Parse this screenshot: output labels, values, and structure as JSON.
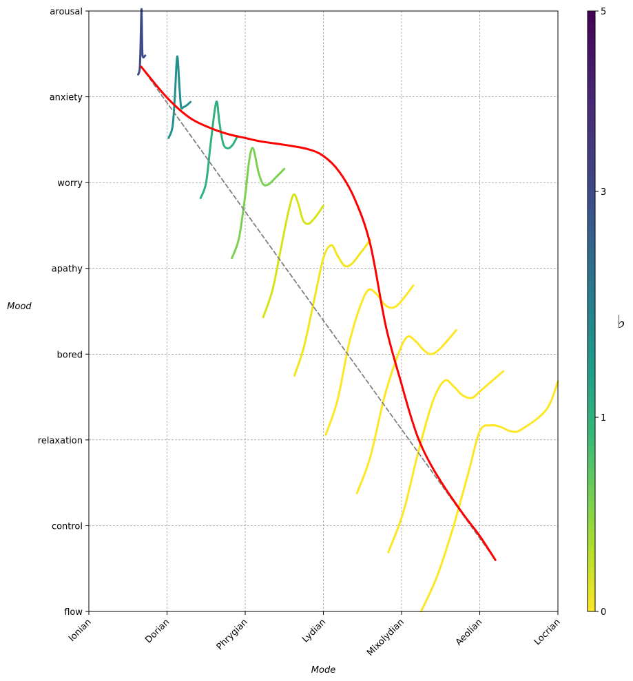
{
  "chart_data": {
    "type": "line",
    "xlabel": "Mode",
    "ylabel": "Mood",
    "x_ticks": [
      "Ionian",
      "Dorian",
      "Phrygian",
      "Lydian",
      "Mixolydian",
      "Aeolian",
      "Locrian"
    ],
    "y_ticks": [
      "flow",
      "control",
      "relaxation",
      "bored",
      "apathy",
      "worry",
      "anxiety",
      "arousal"
    ],
    "xlim": [
      0,
      6
    ],
    "ylim": [
      0,
      7
    ],
    "grid": true,
    "colorbar": {
      "label": "♭",
      "ticks": [
        "0",
        "1",
        "3",
        "5"
      ],
      "range": [
        0,
        5
      ],
      "colormap": "viridis_r"
    },
    "series": [
      {
        "kind": "main-curve",
        "color": "#ff0000",
        "x": [
          0.67,
          1.0,
          1.3,
          1.6,
          1.8,
          2.0,
          2.2,
          2.5,
          2.8,
          3.0,
          3.2,
          3.4,
          3.6,
          3.8,
          4.0,
          4.1,
          4.2,
          4.3,
          4.4,
          4.5,
          4.6,
          4.8,
          5.0,
          5.2
        ],
        "y": [
          6.35,
          5.99,
          5.75,
          5.62,
          5.56,
          5.52,
          5.48,
          5.44,
          5.39,
          5.31,
          5.13,
          4.81,
          4.28,
          3.32,
          2.65,
          2.33,
          2.05,
          1.84,
          1.67,
          1.52,
          1.38,
          1.12,
          0.88,
          0.6
        ]
      },
      {
        "kind": "dashed-reference",
        "color": "#808080",
        "x": [
          0.67,
          5.2
        ],
        "y": [
          6.35,
          0.6
        ]
      },
      {
        "kind": "wave",
        "color": "#3e4b89",
        "x": [
          0.63,
          0.65,
          0.66,
          0.67,
          0.675,
          0.68,
          0.685,
          0.69,
          0.7,
          0.72
        ],
        "y": [
          6.26,
          6.32,
          6.55,
          6.95,
          7.0,
          6.7,
          6.5,
          6.47,
          6.46,
          6.48
        ]
      },
      {
        "kind": "wave",
        "color": "#21908d",
        "x": [
          1.02,
          1.07,
          1.1,
          1.13,
          1.16,
          1.18,
          1.21,
          1.25,
          1.3
        ],
        "y": [
          5.52,
          5.65,
          6.0,
          6.47,
          6.1,
          5.88,
          5.88,
          5.9,
          5.94
        ]
      },
      {
        "kind": "wave",
        "color": "#2db27d",
        "x": [
          1.43,
          1.5,
          1.56,
          1.63,
          1.67,
          1.72,
          1.78,
          1.84,
          1.9
        ],
        "y": [
          4.82,
          5.0,
          5.47,
          5.94,
          5.7,
          5.45,
          5.4,
          5.44,
          5.54
        ]
      },
      {
        "kind": "wave",
        "color": "#7ad151",
        "x": [
          1.83,
          1.92,
          2.0,
          2.05,
          2.1,
          2.17,
          2.23,
          2.3,
          2.37,
          2.5
        ],
        "y": [
          4.12,
          4.35,
          4.85,
          5.25,
          5.4,
          5.12,
          4.98,
          4.98,
          5.04,
          5.16
        ]
      },
      {
        "kind": "wave",
        "color": "#d8e219",
        "x": [
          2.23,
          2.35,
          2.45,
          2.55,
          2.62,
          2.68,
          2.74,
          2.81,
          2.9,
          3.0
        ],
        "y": [
          3.43,
          3.75,
          4.2,
          4.65,
          4.86,
          4.75,
          4.56,
          4.52,
          4.6,
          4.73
        ]
      },
      {
        "kind": "wave",
        "color": "#f2e51d",
        "x": [
          2.63,
          2.75,
          2.88,
          3.0,
          3.1,
          3.18,
          3.27,
          3.36,
          3.45,
          3.6
        ],
        "y": [
          2.75,
          3.08,
          3.62,
          4.12,
          4.27,
          4.15,
          4.03,
          4.05,
          4.15,
          4.33
        ]
      },
      {
        "kind": "wave",
        "color": "#fde725",
        "x": [
          3.03,
          3.18,
          3.33,
          3.48,
          3.58,
          3.68,
          3.78,
          3.88,
          3.98,
          4.15
        ],
        "y": [
          2.06,
          2.46,
          3.13,
          3.58,
          3.75,
          3.7,
          3.58,
          3.54,
          3.6,
          3.8
        ]
      },
      {
        "kind": "wave",
        "color": "#fde725",
        "x": [
          3.43,
          3.6,
          3.78,
          3.95,
          4.07,
          4.18,
          4.28,
          4.38,
          4.5,
          4.7
        ],
        "y": [
          1.38,
          1.8,
          2.5,
          2.98,
          3.2,
          3.15,
          3.05,
          3.0,
          3.07,
          3.28
        ]
      },
      {
        "kind": "wave",
        "color": "#fde725",
        "x": [
          3.83,
          4.02,
          4.22,
          4.4,
          4.55,
          4.67,
          4.78,
          4.9,
          5.02,
          5.3
        ],
        "y": [
          0.69,
          1.15,
          1.88,
          2.45,
          2.69,
          2.62,
          2.52,
          2.49,
          2.58,
          2.8
        ]
      },
      {
        "kind": "wave",
        "color": "#fde725",
        "x": [
          4.25,
          4.45,
          4.65,
          4.85,
          5.0,
          5.14,
          5.27,
          5.4,
          5.53,
          5.85,
          6.0
        ],
        "y": [
          0.0,
          0.4,
          0.95,
          1.6,
          2.1,
          2.17,
          2.15,
          2.1,
          2.12,
          2.35,
          2.68
        ]
      }
    ]
  }
}
